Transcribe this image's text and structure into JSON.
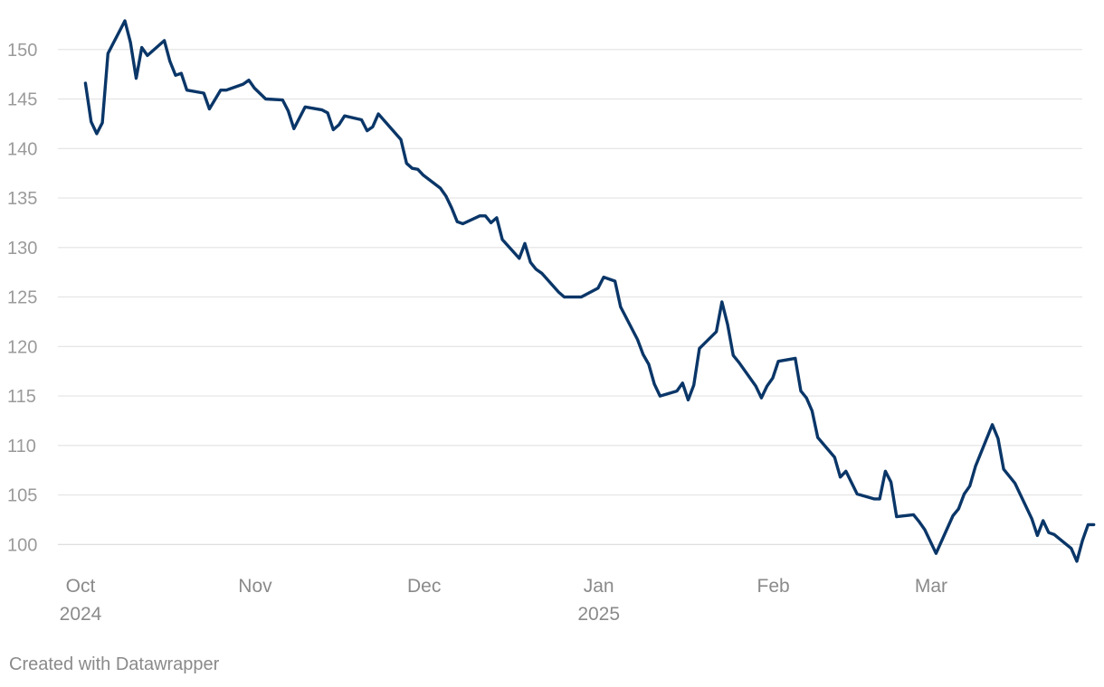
{
  "chart_data": {
    "type": "line",
    "title": "",
    "xlabel": "",
    "ylabel": "",
    "ylim": [
      97,
      153
    ],
    "xlim": [
      "2024-10-01",
      "2025-03-28"
    ],
    "y_ticks": [
      100,
      105,
      110,
      115,
      120,
      125,
      130,
      135,
      140,
      145,
      150
    ],
    "x_ticks": [
      {
        "date": "2024-10-01",
        "label": "Oct",
        "year": "2024"
      },
      {
        "date": "2024-11-01",
        "label": "Nov",
        "year": ""
      },
      {
        "date": "2024-12-01",
        "label": "Dec",
        "year": ""
      },
      {
        "date": "2025-01-01",
        "label": "Jan",
        "year": "2025"
      },
      {
        "date": "2025-02-01",
        "label": "Feb",
        "year": ""
      },
      {
        "date": "2025-03-01",
        "label": "Mar",
        "year": ""
      }
    ],
    "grid": true,
    "legend": "none",
    "series": [
      {
        "color": "#0a3668",
        "points": [
          [
            "2024-10-03",
            146.6
          ],
          [
            "2024-10-04",
            142.7
          ],
          [
            "2024-10-05",
            141.5
          ],
          [
            "2024-10-06",
            142.6
          ],
          [
            "2024-10-07",
            149.6
          ],
          [
            "2024-10-10",
            152.9
          ],
          [
            "2024-10-11",
            150.7
          ],
          [
            "2024-10-12",
            147.1
          ],
          [
            "2024-10-13",
            150.2
          ],
          [
            "2024-10-14",
            149.4
          ],
          [
            "2024-10-17",
            150.9
          ],
          [
            "2024-10-18",
            148.8
          ],
          [
            "2024-10-19",
            147.4
          ],
          [
            "2024-10-20",
            147.6
          ],
          [
            "2024-10-21",
            145.9
          ],
          [
            "2024-10-24",
            145.6
          ],
          [
            "2024-10-25",
            144.0
          ],
          [
            "2024-10-27",
            145.9
          ],
          [
            "2024-10-28",
            145.9
          ],
          [
            "2024-10-31",
            146.5
          ],
          [
            "2024-11-01",
            146.9
          ],
          [
            "2024-11-02",
            146.1
          ],
          [
            "2024-11-04",
            145.0
          ],
          [
            "2024-11-07",
            144.9
          ],
          [
            "2024-11-08",
            143.8
          ],
          [
            "2024-11-09",
            142.0
          ],
          [
            "2024-11-11",
            144.2
          ],
          [
            "2024-11-14",
            143.9
          ],
          [
            "2024-11-15",
            143.6
          ],
          [
            "2024-11-16",
            141.9
          ],
          [
            "2024-11-17",
            142.4
          ],
          [
            "2024-11-18",
            143.3
          ],
          [
            "2024-11-21",
            142.9
          ],
          [
            "2024-11-22",
            141.8
          ],
          [
            "2024-11-23",
            142.2
          ],
          [
            "2024-11-24",
            143.5
          ],
          [
            "2024-11-28",
            140.9
          ],
          [
            "2024-11-29",
            138.5
          ],
          [
            "2024-11-30",
            138.0
          ],
          [
            "2024-12-01",
            137.9
          ],
          [
            "2024-12-02",
            137.3
          ],
          [
            "2024-12-05",
            136.0
          ],
          [
            "2024-12-06",
            135.2
          ],
          [
            "2024-12-07",
            134.0
          ],
          [
            "2024-12-08",
            132.6
          ],
          [
            "2024-12-09",
            132.4
          ],
          [
            "2024-12-12",
            133.2
          ],
          [
            "2024-12-13",
            133.2
          ],
          [
            "2024-12-14",
            132.5
          ],
          [
            "2024-12-15",
            133.0
          ],
          [
            "2024-12-16",
            130.8
          ],
          [
            "2024-12-19",
            128.9
          ],
          [
            "2024-12-20",
            130.4
          ],
          [
            "2024-12-21",
            128.5
          ],
          [
            "2024-12-22",
            127.8
          ],
          [
            "2024-12-23",
            127.4
          ],
          [
            "2024-12-26",
            125.5
          ],
          [
            "2024-12-27",
            125.0
          ],
          [
            "2024-12-30",
            125.0
          ],
          [
            "2025-01-02",
            125.9
          ],
          [
            "2025-01-03",
            127.0
          ],
          [
            "2025-01-05",
            126.6
          ],
          [
            "2025-01-06",
            124.0
          ],
          [
            "2025-01-09",
            120.7
          ],
          [
            "2025-01-10",
            119.2
          ],
          [
            "2025-01-11",
            118.2
          ],
          [
            "2025-01-12",
            116.2
          ],
          [
            "2025-01-13",
            115.0
          ],
          [
            "2025-01-16",
            115.5
          ],
          [
            "2025-01-17",
            116.3
          ],
          [
            "2025-01-18",
            114.6
          ],
          [
            "2025-01-19",
            116.1
          ],
          [
            "2025-01-20",
            119.8
          ],
          [
            "2025-01-23",
            121.5
          ],
          [
            "2025-01-24",
            124.5
          ],
          [
            "2025-01-25",
            122.2
          ],
          [
            "2025-01-26",
            119.1
          ],
          [
            "2025-01-27",
            118.4
          ],
          [
            "2025-01-30",
            116.0
          ],
          [
            "2025-01-31",
            114.8
          ],
          [
            "2025-02-01",
            116.0
          ],
          [
            "2025-02-02",
            116.8
          ],
          [
            "2025-02-03",
            118.5
          ],
          [
            "2025-02-06",
            118.8
          ],
          [
            "2025-02-07",
            115.5
          ],
          [
            "2025-02-08",
            114.8
          ],
          [
            "2025-02-09",
            113.5
          ],
          [
            "2025-02-10",
            110.8
          ],
          [
            "2025-02-13",
            108.8
          ],
          [
            "2025-02-14",
            106.8
          ],
          [
            "2025-02-15",
            107.4
          ],
          [
            "2025-02-17",
            105.1
          ],
          [
            "2025-02-20",
            104.6
          ],
          [
            "2025-02-21",
            104.6
          ],
          [
            "2025-02-22",
            107.4
          ],
          [
            "2025-02-23",
            106.3
          ],
          [
            "2025-02-24",
            102.8
          ],
          [
            "2025-02-27",
            103.0
          ],
          [
            "2025-02-28",
            102.3
          ],
          [
            "2025-03-01",
            101.5
          ],
          [
            "2025-03-03",
            99.1
          ],
          [
            "2025-03-06",
            102.9
          ],
          [
            "2025-03-07",
            103.6
          ],
          [
            "2025-03-08",
            105.1
          ],
          [
            "2025-03-09",
            105.9
          ],
          [
            "2025-03-10",
            107.9
          ],
          [
            "2025-03-13",
            112.1
          ],
          [
            "2025-03-14",
            110.7
          ],
          [
            "2025-03-15",
            107.6
          ],
          [
            "2025-03-17",
            106.2
          ],
          [
            "2025-03-20",
            102.6
          ],
          [
            "2025-03-21",
            100.9
          ],
          [
            "2025-03-22",
            102.4
          ],
          [
            "2025-03-23",
            101.2
          ],
          [
            "2025-03-24",
            101.0
          ],
          [
            "2025-03-27",
            99.6
          ],
          [
            "2025-03-28",
            98.3
          ],
          [
            "2025-03-29",
            100.4
          ],
          [
            "2025-03-30",
            102.0
          ],
          [
            "2025-03-31",
            102.0
          ]
        ]
      }
    ]
  },
  "footer": {
    "credit": "Created with Datawrapper"
  }
}
